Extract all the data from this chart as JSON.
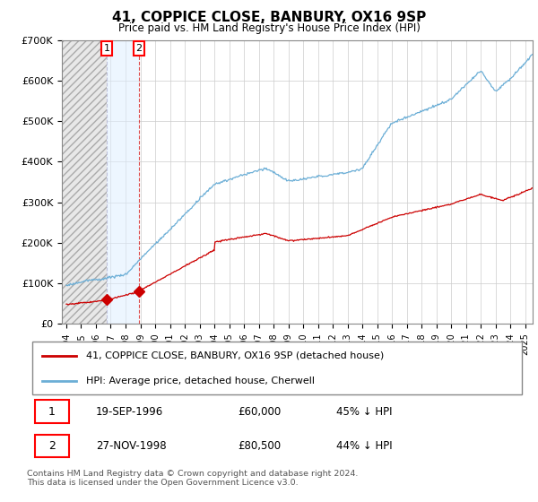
{
  "title": "41, COPPICE CLOSE, BANBURY, OX16 9SP",
  "subtitle": "Price paid vs. HM Land Registry's House Price Index (HPI)",
  "legend_line1": "41, COPPICE CLOSE, BANBURY, OX16 9SP (detached house)",
  "legend_line2": "HPI: Average price, detached house, Cherwell",
  "table_rows": [
    {
      "num": "1",
      "date": "19-SEP-1996",
      "price": "£60,000",
      "rel": "45% ↓ HPI"
    },
    {
      "num": "2",
      "date": "27-NOV-1998",
      "price": "£80,500",
      "rel": "44% ↓ HPI"
    }
  ],
  "footnote": "Contains HM Land Registry data © Crown copyright and database right 2024.\nThis data is licensed under the Open Government Licence v3.0.",
  "sale1_date": 1996.72,
  "sale1_price": 60000,
  "sale2_date": 1998.9,
  "sale2_price": 80500,
  "hpi_color": "#6baed6",
  "price_color": "#cc0000",
  "shaded_color": "#ddeeff",
  "ylim": [
    0,
    700000
  ],
  "xlim_left": 1993.7,
  "xlim_right": 2025.5,
  "xticks": [
    1994,
    1995,
    1996,
    1997,
    1998,
    1999,
    2000,
    2001,
    2002,
    2003,
    2004,
    2005,
    2006,
    2007,
    2008,
    2009,
    2010,
    2011,
    2012,
    2013,
    2014,
    2015,
    2016,
    2017,
    2018,
    2019,
    2020,
    2021,
    2022,
    2023,
    2024,
    2025
  ],
  "yticks": [
    0,
    100000,
    200000,
    300000,
    400000,
    500000,
    600000,
    700000
  ],
  "ytick_labels": [
    "£0",
    "£100K",
    "£200K",
    "£300K",
    "£400K",
    "£500K",
    "£600K",
    "£700K"
  ]
}
